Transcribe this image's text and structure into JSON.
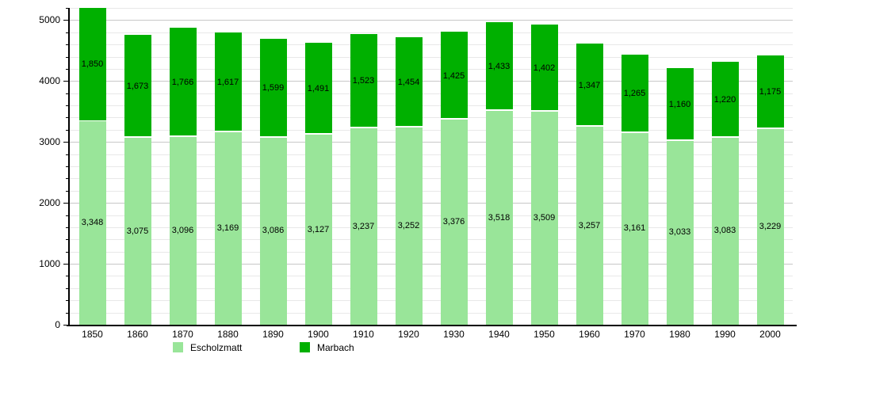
{
  "chart_data": {
    "type": "bar",
    "stacked": true,
    "title": "",
    "categories": [
      "1850",
      "1860",
      "1870",
      "1880",
      "1890",
      "1900",
      "1910",
      "1920",
      "1930",
      "1940",
      "1950",
      "1960",
      "1970",
      "1980",
      "1990",
      "2000"
    ],
    "series": [
      {
        "name": "Escholzmatt",
        "color": "#99e599",
        "values": [
          3348,
          3075,
          3096,
          3169,
          3086,
          3127,
          3237,
          3252,
          3376,
          3518,
          3509,
          3257,
          3161,
          3033,
          3083,
          3229
        ]
      },
      {
        "name": "Marbach",
        "color": "#00b000",
        "values": [
          1850,
          1673,
          1766,
          1617,
          1599,
          1491,
          1523,
          1454,
          1425,
          1433,
          1402,
          1347,
          1265,
          1160,
          1220,
          1175
        ]
      }
    ],
    "xlabel": "",
    "ylabel": "",
    "ylim": [
      0,
      5200
    ],
    "ytick_labels": [
      "0",
      "1000",
      "2000",
      "3000",
      "4000",
      "5000"
    ],
    "ytick_major_step": 1000,
    "ytick_minor_step": 200,
    "grid": "horizontal",
    "legend_position": "bottom",
    "value_labels": "comma-separated, centered in each segment"
  },
  "legend": {
    "items": [
      {
        "label": "Escholzmatt",
        "color": "#99e599"
      },
      {
        "label": "Marbach",
        "color": "#00b000"
      }
    ]
  },
  "colors": {
    "background": "#ffffff",
    "grid_minor": "#e8e8e8",
    "grid_major": "#c8c8c8",
    "axis": "#000000",
    "bar_separator": "#ffffff",
    "label_text": "#000000"
  }
}
